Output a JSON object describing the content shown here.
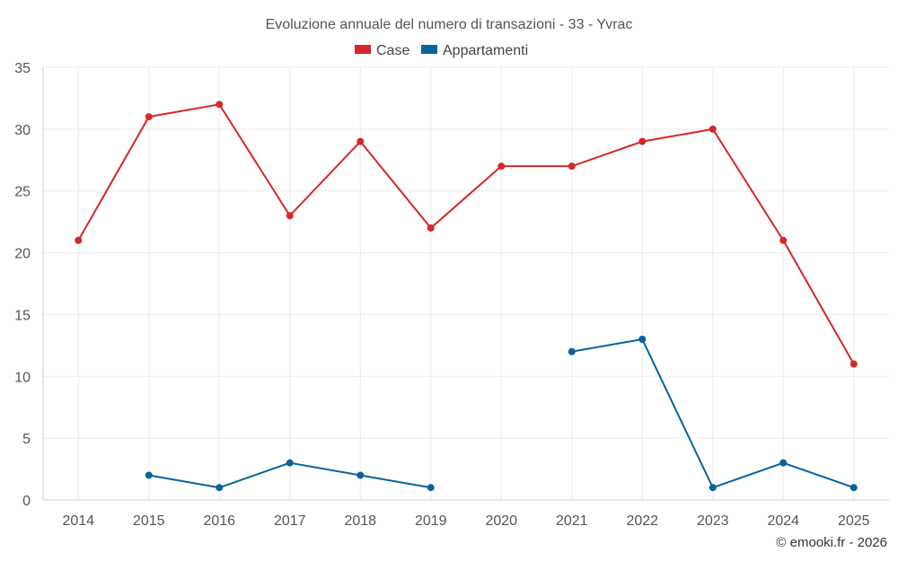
{
  "chart_data": {
    "type": "line",
    "title": "Evoluzione annuale del numero di transazioni - 33 - Yvrac",
    "categories": [
      "2014",
      "2015",
      "2016",
      "2017",
      "2018",
      "2019",
      "2020",
      "2021",
      "2022",
      "2023",
      "2024",
      "2025"
    ],
    "series": [
      {
        "name": "Case",
        "color": "#d62728",
        "values": [
          21,
          31,
          32,
          23,
          29,
          22,
          27,
          27,
          29,
          30,
          21,
          11
        ]
      },
      {
        "name": "Appartamenti",
        "color": "#08649b",
        "values": [
          null,
          2,
          1,
          3,
          2,
          1,
          null,
          12,
          13,
          1,
          3,
          1
        ]
      }
    ],
    "ylim": [
      0,
      35
    ],
    "yticks": [
      0,
      5,
      10,
      15,
      20,
      25,
      30,
      35
    ],
    "xlabel": "",
    "ylabel": "",
    "grid": true,
    "legend": "top-center"
  },
  "credit": "© emooki.fr - 2026"
}
